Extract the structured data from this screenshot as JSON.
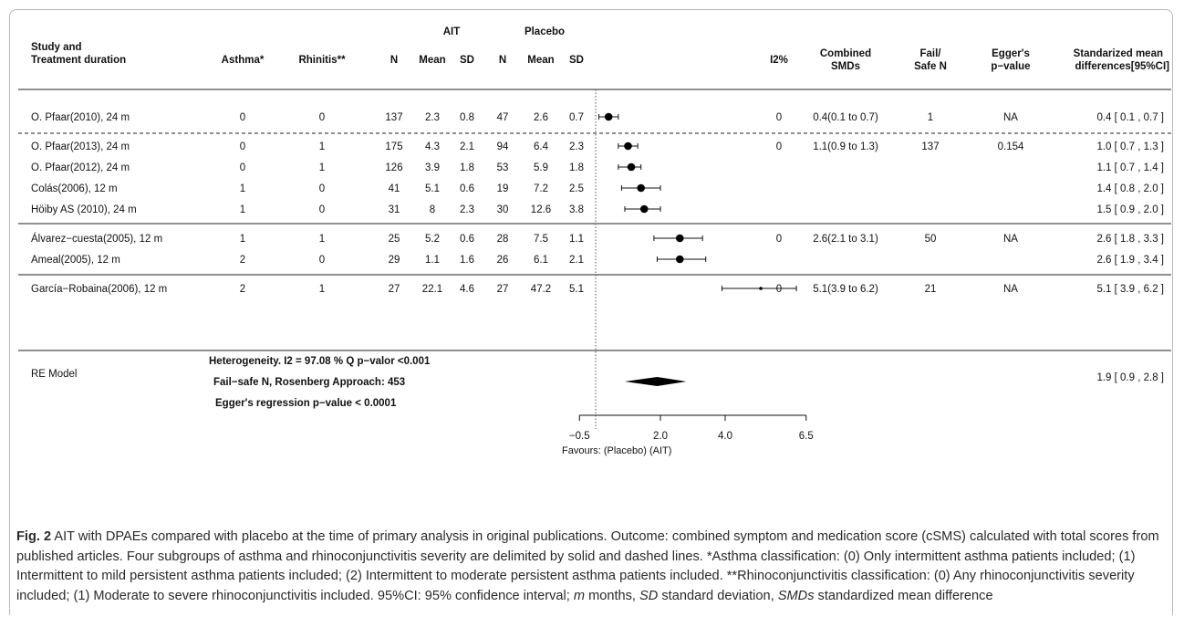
{
  "headers": {
    "study_1": "Study and",
    "study_2": "Treatment duration",
    "asthma": "Asthma*",
    "rhinitis": "Rhinitis**",
    "ait_group": "AIT",
    "placebo_group": "Placebo",
    "n": "N",
    "mean": "Mean",
    "sd": "SD",
    "i2": "I2%",
    "combined_1": "Combined",
    "combined_2": "SMDs",
    "failsafe_1": "Fail/",
    "failsafe_2": "Safe N",
    "egger_1": "Egger's",
    "egger_2": "p−value",
    "smd_1": "Standarized mean",
    "smd_2": "differences[95%CI]"
  },
  "summary": {
    "model_label": "RE Model",
    "heterogeneity": "Heterogeneity. I2 = 97.08 % Q p−valor <0.001",
    "failsafe": "Fail−safe N, Rosenberg Approach: 453",
    "egger": "Egger's regression p−value < 0.0001",
    "ci_text": "1.9 [ 0.9 , 2.8 ]"
  },
  "axis": {
    "favours": "Favours:  (Placebo)   (AIT)"
  },
  "chart_data": {
    "type": "forest",
    "x_ticks": [
      -0.5,
      2.0,
      4.0,
      6.5
    ],
    "x_tick_labels": [
      "−0.5",
      "2.0",
      "4.0",
      "6.5"
    ],
    "reference_line": 0,
    "studies": [
      {
        "label": "O. Pfaar(2010), 24 m",
        "asthma": "0",
        "rhinitis": "0",
        "ait_n": "137",
        "ait_mean": "2.3",
        "ait_sd": "0.8",
        "pl_n": "47",
        "pl_mean": "2.6",
        "pl_sd": "0.7",
        "i2": "0",
        "combined": "0.4(0.1 to 0.7)",
        "failsafe": "1",
        "egger": "NA",
        "ci_text": "0.4 [ 0.1 , 0.7 ]",
        "est": 0.4,
        "lo": 0.1,
        "hi": 0.7,
        "size": 5
      },
      {
        "label": "O. Pfaar(2013), 24 m",
        "asthma": "0",
        "rhinitis": "1",
        "ait_n": "175",
        "ait_mean": "4.3",
        "ait_sd": "2.1",
        "pl_n": "94",
        "pl_mean": "6.4",
        "pl_sd": "2.3",
        "i2": "0",
        "combined": "1.1(0.9 to 1.3)",
        "failsafe": "137",
        "egger": "0.154",
        "ci_text": "1.0 [ 0.7 , 1.3 ]",
        "est": 1.0,
        "lo": 0.7,
        "hi": 1.3,
        "size": 5
      },
      {
        "label": "O. Pfaar(2012), 24 m",
        "asthma": "0",
        "rhinitis": "1",
        "ait_n": "126",
        "ait_mean": "3.9",
        "ait_sd": "1.8",
        "pl_n": "53",
        "pl_mean": "5.9",
        "pl_sd": "1.8",
        "i2": "",
        "combined": "",
        "failsafe": "",
        "egger": "",
        "ci_text": "1.1 [ 0.7 , 1.4 ]",
        "est": 1.1,
        "lo": 0.7,
        "hi": 1.4,
        "size": 5
      },
      {
        "label": "Colás(2006), 12 m",
        "asthma": "1",
        "rhinitis": "0",
        "ait_n": "41",
        "ait_mean": "5.1",
        "ait_sd": "0.6",
        "pl_n": "19",
        "pl_mean": "7.2",
        "pl_sd": "2.5",
        "i2": "",
        "combined": "",
        "failsafe": "",
        "egger": "",
        "ci_text": "1.4 [ 0.8 , 2.0 ]",
        "est": 1.4,
        "lo": 0.8,
        "hi": 2.0,
        "size": 4.5
      },
      {
        "label": "Höiby AS (2010), 24 m",
        "asthma": "1",
        "rhinitis": "0",
        "ait_n": "31",
        "ait_mean": "8",
        "ait_sd": "2.3",
        "pl_n": "30",
        "pl_mean": "12.6",
        "pl_sd": "3.8",
        "i2": "",
        "combined": "",
        "failsafe": "",
        "egger": "",
        "ci_text": "1.5 [ 0.9 , 2.0 ]",
        "est": 1.5,
        "lo": 0.9,
        "hi": 2.0,
        "size": 4.5
      },
      {
        "label": "Álvarez−cuesta(2005), 12 m",
        "asthma": "1",
        "rhinitis": "1",
        "ait_n": "25",
        "ait_mean": "5.2",
        "ait_sd": "0.6",
        "pl_n": "28",
        "pl_mean": "7.5",
        "pl_sd": "1.1",
        "i2": "0",
        "combined": "2.6(2.1 to 3.1)",
        "failsafe": "50",
        "egger": "NA",
        "ci_text": "2.6 [ 1.8 , 3.3 ]",
        "est": 2.6,
        "lo": 1.8,
        "hi": 3.3,
        "size": 4
      },
      {
        "label": "Ameal(2005), 12 m",
        "asthma": "2",
        "rhinitis": "0",
        "ait_n": "29",
        "ait_mean": "1.1",
        "ait_sd": "1.6",
        "pl_n": "26",
        "pl_mean": "6.1",
        "pl_sd": "2.1",
        "i2": "",
        "combined": "",
        "failsafe": "",
        "egger": "",
        "ci_text": "2.6 [ 1.9 , 3.4 ]",
        "est": 2.6,
        "lo": 1.9,
        "hi": 3.4,
        "size": 4
      },
      {
        "label": "García−Robaina(2006), 12 m",
        "asthma": "2",
        "rhinitis": "1",
        "ait_n": "27",
        "ait_mean": "22.1",
        "ait_sd": "4.6",
        "pl_n": "27",
        "pl_mean": "47.2",
        "pl_sd": "5.1",
        "i2": "0",
        "combined": "5.1(3.9 to 6.2)",
        "failsafe": "21",
        "egger": "NA",
        "ci_text": "5.1 [ 3.9 , 6.2 ]",
        "est": 5.1,
        "lo": 3.9,
        "hi": 6.2,
        "size": 2
      }
    ],
    "pooled": {
      "est": 1.9,
      "lo": 0.9,
      "hi": 2.8
    },
    "separators": [
      {
        "after_study": 0,
        "style": "dashed"
      },
      {
        "after_study": 4,
        "style": "solid"
      },
      {
        "after_study": 6,
        "style": "solid"
      }
    ]
  },
  "caption": {
    "label": "Fig. 2",
    "text_1": " AIT with DPAEs compared with placebo at the time of primary analysis in original publications. Outcome: combined symptom and medication score (cSMS) calculated with total scores from published articles. Four subgroups of asthma and rhinoconjunctivitis severity are delimited by solid and dashed lines. *Asthma classification: (0) Only intermittent asthma patients included; (1) Intermittent to mild persistent asthma patients included; (2) Intermittent to moderate persistent asthma patients included. **Rhinoconjunctivitis classification: (0) Any rhinoconjunctivitis severity included; (1) Moderate to severe rhinoconjunctivitis included. 95%CI: 95% confidence interval; ",
    "m_abbr": "m",
    "text_2": " months, ",
    "sd_abbr": "SD",
    "text_3": " standard deviation, ",
    "smds_abbr": "SMDs",
    "text_4": " standardized mean difference"
  }
}
